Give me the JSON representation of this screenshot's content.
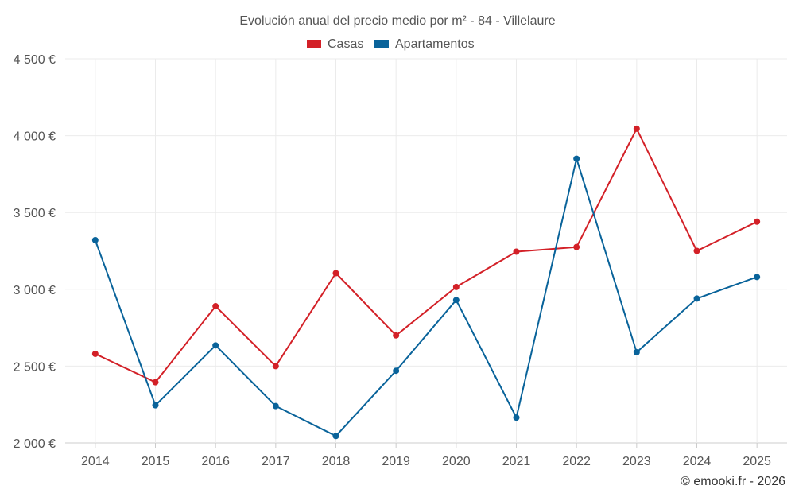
{
  "chart_data": {
    "type": "line",
    "title": "Evolución anual del precio medio por m² - 84 - Villelaure",
    "categories": [
      "2014",
      "2015",
      "2016",
      "2017",
      "2018",
      "2019",
      "2020",
      "2021",
      "2022",
      "2023",
      "2024",
      "2025"
    ],
    "series": [
      {
        "name": "Casas",
        "color": "#d32027",
        "values": [
          2580,
          2395,
          2890,
          2500,
          3105,
          2700,
          3015,
          3245,
          3275,
          4045,
          3250,
          3440
        ]
      },
      {
        "name": "Apartamentos",
        "color": "#09639a",
        "values": [
          3320,
          2245,
          2635,
          2240,
          2045,
          2470,
          2930,
          2165,
          3850,
          2590,
          2940,
          3080
        ]
      }
    ],
    "ylim": [
      2000,
      4500
    ],
    "yticks": [
      2000,
      2500,
      3000,
      3500,
      4000,
      4500
    ],
    "ytick_labels": [
      "2 000 €",
      "2 500 €",
      "3 000 €",
      "3 500 €",
      "4 000 €",
      "4 500 €"
    ],
    "xlabel": "",
    "ylabel": "",
    "legend_position": "top-center",
    "grid": true
  },
  "credit": "© emooki.fr - 2026",
  "colors": {
    "grid": "#ebebeb",
    "axis": "#cccccc",
    "text": "#555555"
  }
}
